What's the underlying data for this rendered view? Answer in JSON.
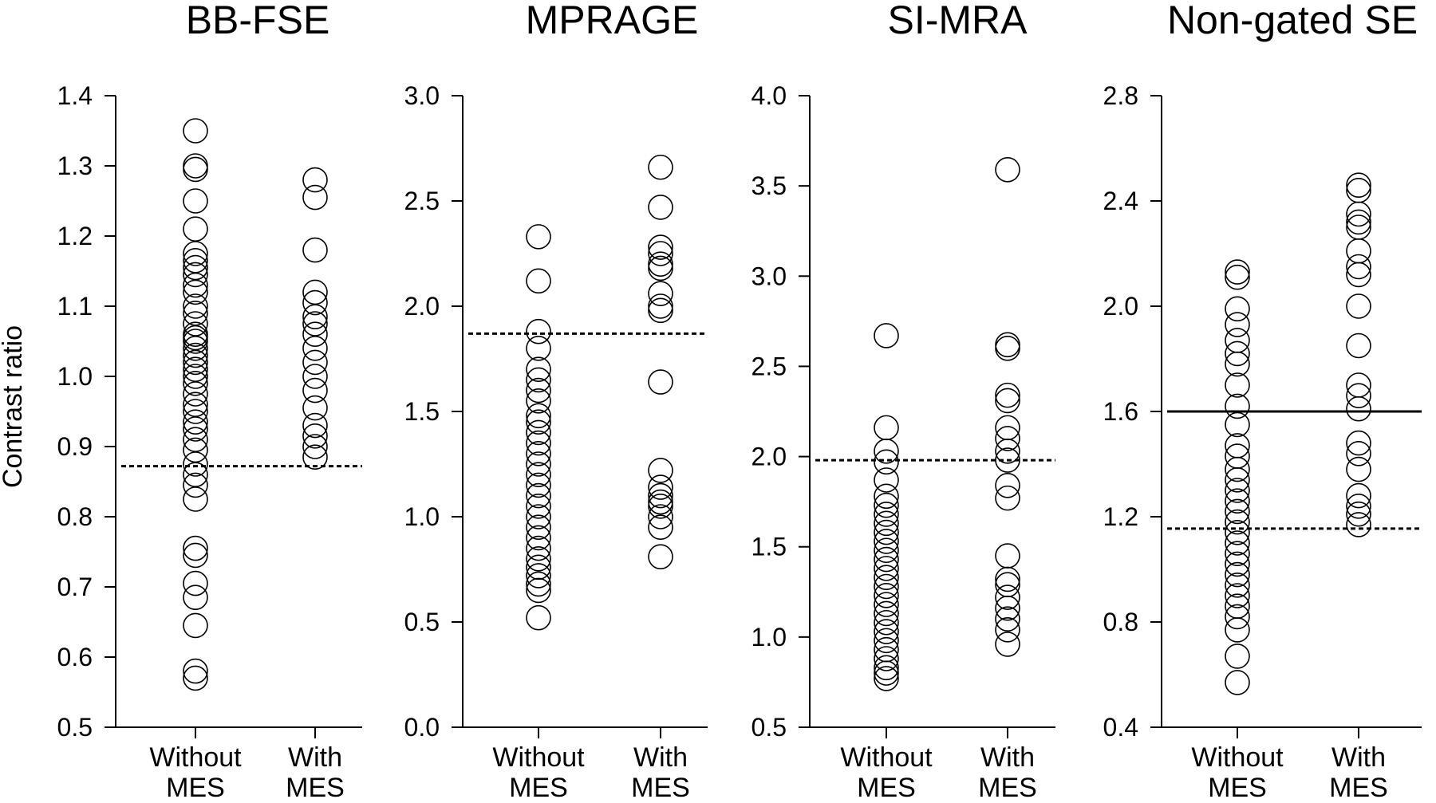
{
  "figure": {
    "ylabel": "Contrast ratio"
  },
  "chart_data": [
    {
      "type": "scatter",
      "title": "BB-FSE",
      "ylabel": "Contrast ratio",
      "ylim": [
        0.5,
        1.4
      ],
      "yticks": [
        "0.5",
        "0.6",
        "0.7",
        "0.8",
        "0.9",
        "1.0",
        "1.1",
        "1.2",
        "1.3",
        "1.4"
      ],
      "categories": [
        [
          "Without",
          "MES"
        ],
        [
          "With",
          "MES"
        ]
      ],
      "series": [
        {
          "category": 0,
          "values": [
            1.35,
            1.3,
            1.295,
            1.25,
            1.21,
            1.175,
            1.165,
            1.155,
            1.145,
            1.13,
            1.12,
            1.1,
            1.09,
            1.075,
            1.06,
            1.055,
            1.05,
            1.04,
            1.03,
            1.02,
            1.01,
            1.0,
            0.99,
            0.975,
            0.96,
            0.95,
            0.935,
            0.925,
            0.91,
            0.895,
            0.875,
            0.86,
            0.845,
            0.825,
            0.755,
            0.745,
            0.705,
            0.685,
            0.645,
            0.58,
            0.57
          ]
        },
        {
          "category": 1,
          "values": [
            1.28,
            1.255,
            1.18,
            1.12,
            1.105,
            1.085,
            1.075,
            1.06,
            1.04,
            1.02,
            1.0,
            0.98,
            0.955,
            0.93,
            0.915,
            0.9,
            0.885
          ]
        }
      ],
      "hlines": [
        {
          "y": 0.872,
          "style": "dotted"
        }
      ]
    },
    {
      "type": "scatter",
      "title": "MPRAGE",
      "ylim": [
        0.0,
        3.0
      ],
      "yticks": [
        "0.0",
        "0.5",
        "1.0",
        "1.5",
        "2.0",
        "2.5",
        "3.0"
      ],
      "categories": [
        [
          "Without",
          "MES"
        ],
        [
          "With",
          "MES"
        ]
      ],
      "series": [
        {
          "category": 0,
          "values": [
            2.33,
            2.12,
            1.88,
            1.8,
            1.7,
            1.65,
            1.6,
            1.55,
            1.48,
            1.45,
            1.4,
            1.35,
            1.3,
            1.25,
            1.2,
            1.15,
            1.1,
            1.05,
            1.0,
            0.95,
            0.9,
            0.85,
            0.8,
            0.76,
            0.72,
            0.68,
            0.65,
            0.52
          ]
        },
        {
          "category": 1,
          "values": [
            2.66,
            2.47,
            2.28,
            2.25,
            2.2,
            2.18,
            2.06,
            2.0,
            1.98,
            1.64,
            1.22,
            1.14,
            1.1,
            1.07,
            1.05,
            1.0,
            0.95,
            0.81
          ]
        }
      ],
      "hlines": [
        {
          "y": 1.87,
          "style": "dotted"
        }
      ]
    },
    {
      "type": "scatter",
      "title": "SI-MRA",
      "ylim": [
        0.5,
        4.0
      ],
      "yticks": [
        "0.5",
        "1.0",
        "1.5",
        "2.0",
        "2.5",
        "3.0",
        "3.5",
        "4.0"
      ],
      "categories": [
        [
          "Without",
          "MES"
        ],
        [
          "With",
          "MES"
        ]
      ],
      "series": [
        {
          "category": 0,
          "values": [
            2.67,
            2.16,
            2.03,
            1.97,
            1.87,
            1.78,
            1.73,
            1.68,
            1.63,
            1.58,
            1.53,
            1.48,
            1.43,
            1.38,
            1.33,
            1.28,
            1.23,
            1.18,
            1.13,
            1.08,
            1.03,
            0.98,
            0.93,
            0.88,
            0.83,
            0.8,
            0.77
          ]
        },
        {
          "category": 1,
          "values": [
            3.59,
            2.62,
            2.6,
            2.34,
            2.31,
            2.16,
            2.1,
            2.03,
            1.98,
            1.84,
            1.77,
            1.45,
            1.32,
            1.29,
            1.22,
            1.16,
            1.1,
            1.04,
            0.96
          ]
        }
      ],
      "hlines": [
        {
          "y": 1.98,
          "style": "dotted"
        }
      ]
    },
    {
      "type": "scatter",
      "title": "Non-gated SE",
      "ylim": [
        0.4,
        2.8
      ],
      "yticks": [
        "0.4",
        "0.8",
        "1.2",
        "1.6",
        "2.0",
        "2.4",
        "2.8"
      ],
      "categories": [
        [
          "Without",
          "MES"
        ],
        [
          "With",
          "MES"
        ]
      ],
      "series": [
        {
          "category": 0,
          "values": [
            2.13,
            2.11,
            1.99,
            1.93,
            1.87,
            1.82,
            1.78,
            1.7,
            1.62,
            1.55,
            1.47,
            1.43,
            1.38,
            1.34,
            1.3,
            1.26,
            1.22,
            1.18,
            1.14,
            1.1,
            1.06,
            1.02,
            0.98,
            0.94,
            0.9,
            0.86,
            0.82,
            0.77,
            0.67,
            0.57
          ]
        },
        {
          "category": 1,
          "values": [
            2.46,
            2.44,
            2.35,
            2.32,
            2.3,
            2.21,
            2.15,
            2.12,
            2.0,
            1.85,
            1.7,
            1.66,
            1.61,
            1.48,
            1.44,
            1.38,
            1.28,
            1.24,
            1.21,
            1.17
          ]
        }
      ],
      "hlines": [
        {
          "y": 1.6,
          "style": "solid"
        },
        {
          "y": 1.155,
          "style": "dotted"
        }
      ]
    }
  ]
}
